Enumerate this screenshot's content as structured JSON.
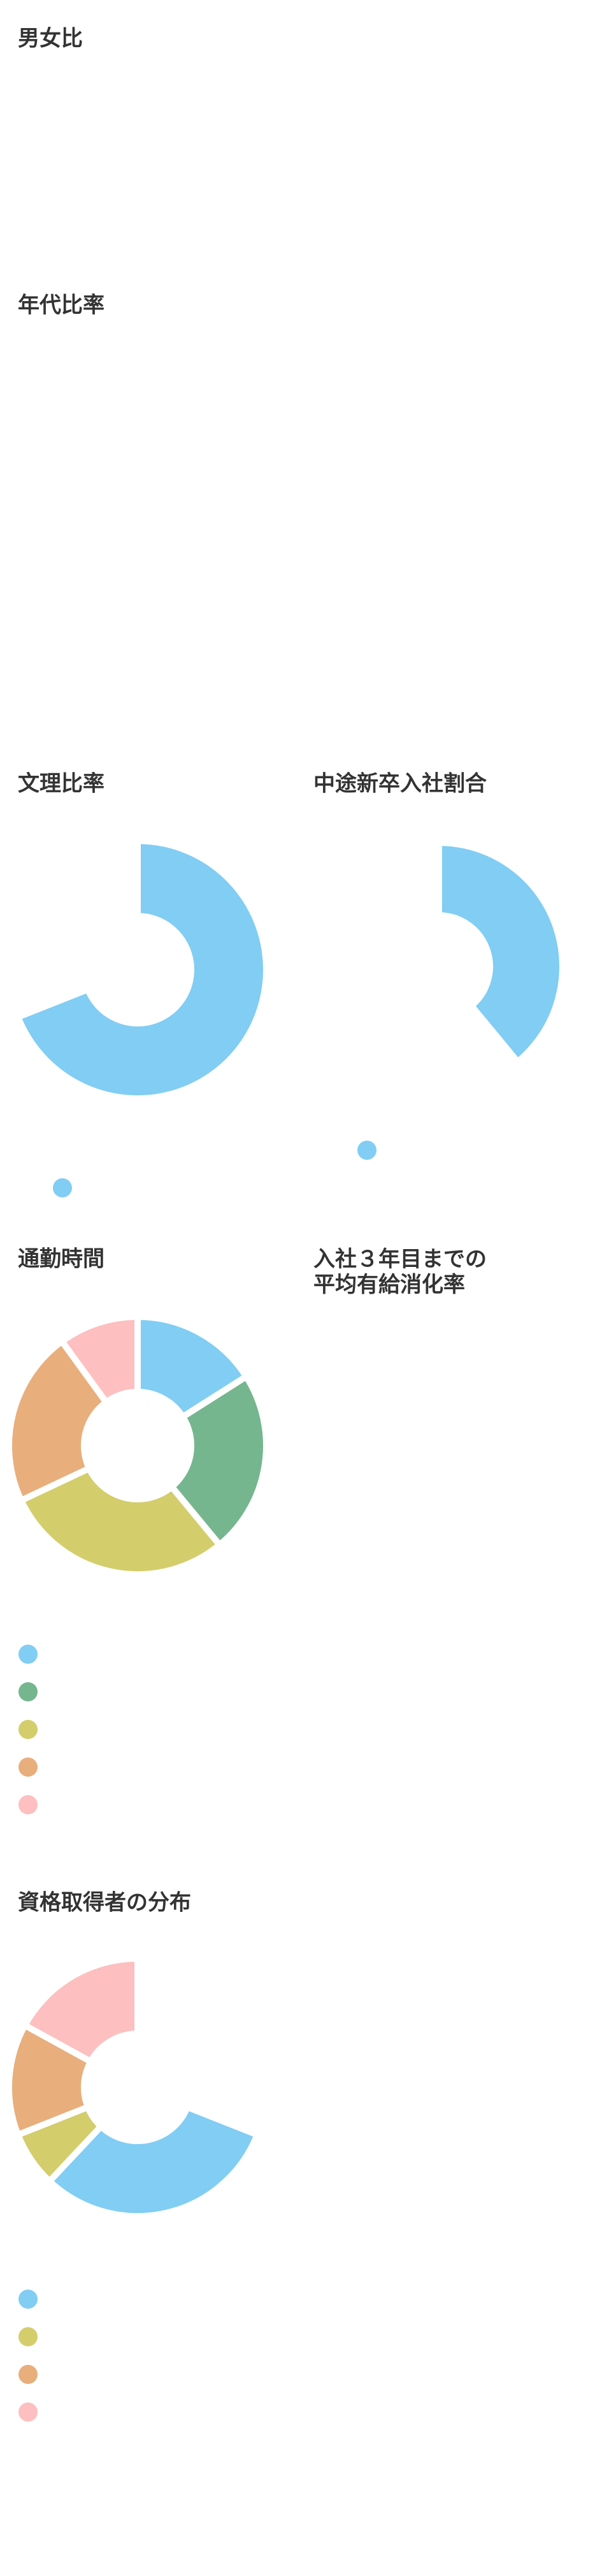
{
  "sections": [
    {
      "title": "男女比"
    },
    {
      "title": "年代比率"
    },
    {
      "title": "文理比率",
      "chart": {
        "type": "donut",
        "values": [
          69,
          31
        ],
        "colors": [
          "#81cdf3",
          "none"
        ]
      }
    },
    {
      "title": "中途新卒入社割合",
      "chart": {
        "type": "donut",
        "values": [
          39,
          61
        ],
        "colors": [
          "#81cdf3",
          "none"
        ]
      }
    },
    {
      "title": "通勤時間",
      "chart": {
        "type": "donut",
        "values": [
          16,
          23,
          29,
          22,
          10
        ],
        "colors": [
          "#81cdf3",
          "#75b68e",
          "#d3cd6c",
          "#e8ae7c",
          "#fdbfbf"
        ]
      }
    },
    {
      "title": "入社３年目までの\n平均有給消化率"
    },
    {
      "title": "資格取得者の分布",
      "chart": {
        "type": "donut",
        "values": [
          31,
          31,
          7,
          14,
          17
        ],
        "colors": [
          "none",
          "#81cdf3",
          "#d3cd6c",
          "#e8ae7c",
          "#fdbfbf"
        ]
      }
    }
  ]
}
